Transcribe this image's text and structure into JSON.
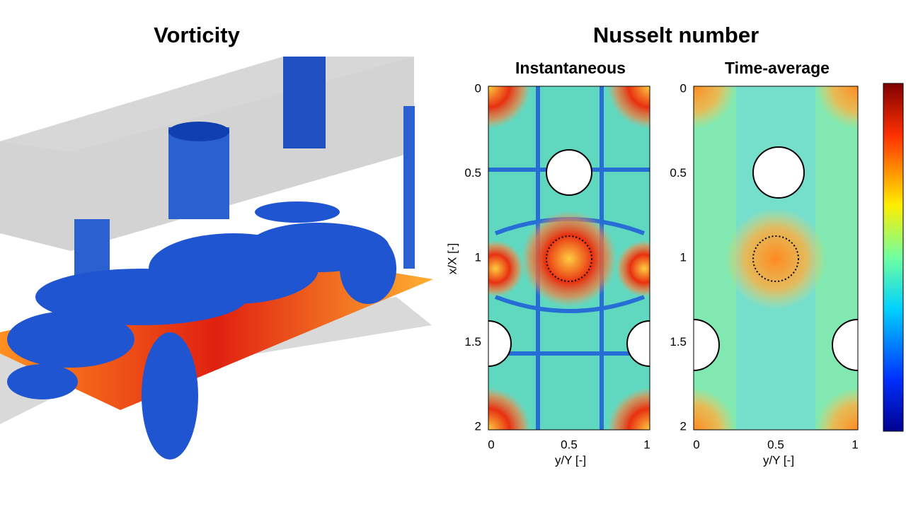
{
  "left_panel": {
    "title": "Vorticity"
  },
  "right_panel": {
    "title": "Nusselt number",
    "plots": [
      {
        "subtitle": "Instantaneous",
        "y_label": "x/X [-]",
        "y_ticks": [
          "0",
          "0.5",
          "1",
          "1.5",
          "2"
        ],
        "x_ticks": [
          "0",
          "0.5",
          "1"
        ],
        "x_label": "y/Y [-]"
      },
      {
        "subtitle": "Time-average",
        "y_ticks": [
          "0",
          "0.5",
          "1",
          "1.5",
          "2"
        ],
        "x_ticks": [
          "0",
          "0.5",
          "1"
        ],
        "x_label": "y/Y [-]"
      }
    ]
  }
}
